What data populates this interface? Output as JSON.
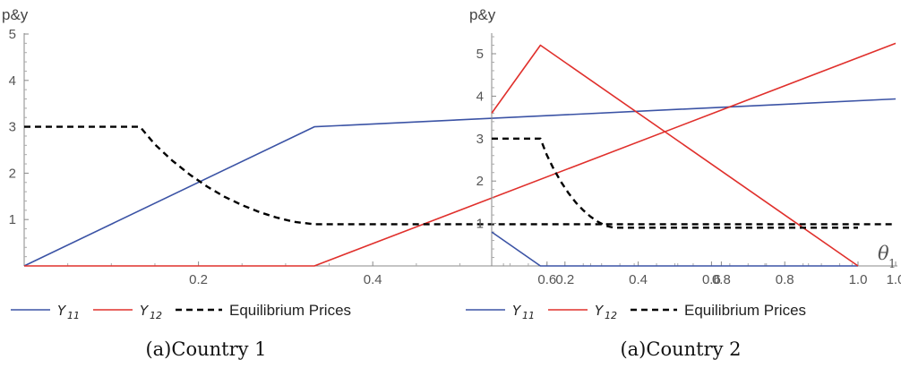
{
  "chart_data": [
    {
      "type": "line",
      "ylabel": "p&y",
      "xlabel": {
        "symbol": "θ",
        "sub": "1"
      },
      "caption": "(a)Country 1",
      "xlim": [
        0,
        1.0
      ],
      "ylim": [
        0,
        5
      ],
      "xticks": [
        0.2,
        0.4,
        0.6,
        0.8,
        1.0
      ],
      "xtick_labels": [
        "0.2",
        "0.4",
        "0.6",
        "0.8",
        "1.0"
      ],
      "yticks": [
        1,
        2,
        3,
        4,
        5
      ],
      "ytick_labels": [
        "1",
        "2",
        "3",
        "4",
        "5"
      ],
      "legend": [
        {
          "symbol": "Y",
          "sub": "11",
          "color": "#3b53a5",
          "dash": false
        },
        {
          "symbol": "Y",
          "sub": "12",
          "color": "#e0302c",
          "dash": false
        },
        {
          "label": "Equilibrium Prices",
          "color": "#000000",
          "dash": true
        }
      ],
      "series": [
        {
          "color": "#3b53a5",
          "dash": false,
          "x": [
            0,
            0.333,
            1.0
          ],
          "y": [
            0,
            3.0,
            3.6
          ]
        },
        {
          "color": "#e0302c",
          "dash": false,
          "x": [
            0,
            0.333,
            1.0
          ],
          "y": [
            0,
            0,
            4.8
          ]
        },
        {
          "color": "#000000",
          "dash": true,
          "x": [
            0,
            0.133,
            0.15,
            0.17,
            0.19,
            0.21,
            0.23,
            0.25,
            0.27,
            0.29,
            0.31,
            0.333,
            1.0
          ],
          "y": [
            3.0,
            3.0,
            2.62,
            2.27,
            1.97,
            1.71,
            1.49,
            1.31,
            1.16,
            1.04,
            0.95,
            0.9,
            0.9
          ]
        }
      ]
    },
    {
      "type": "line",
      "ylabel": "p&y",
      "xlabel": {
        "symbol": "θ",
        "sub": "1"
      },
      "caption": "(a)Country 2",
      "xlim": [
        0,
        1.0
      ],
      "ylim": [
        0,
        5.5
      ],
      "xticks": [
        0.2,
        0.4,
        0.6,
        0.8,
        1.0
      ],
      "xtick_labels": [
        "0.2",
        "0.4",
        "0.6",
        "0.8",
        "1.0"
      ],
      "yticks": [
        1,
        2,
        3,
        4,
        5
      ],
      "ytick_labels": [
        "1",
        "2",
        "3",
        "4",
        "5"
      ],
      "legend": [
        {
          "symbol": "Y",
          "sub": "11",
          "color": "#3b53a5",
          "dash": false
        },
        {
          "symbol": "Y",
          "sub": "12",
          "color": "#e0302c",
          "dash": false
        },
        {
          "label": "Equilibrium Prices",
          "color": "#000000",
          "dash": true
        }
      ],
      "series": [
        {
          "color": "#3b53a5",
          "dash": false,
          "x": [
            0,
            0.133,
            1.0
          ],
          "y": [
            0.8,
            0,
            0
          ]
        },
        {
          "color": "#e0302c",
          "dash": false,
          "x": [
            0,
            0.133,
            1.0
          ],
          "y": [
            3.6,
            5.2,
            0
          ]
        },
        {
          "color": "#000000",
          "dash": true,
          "x": [
            0,
            0.133,
            0.15,
            0.17,
            0.19,
            0.21,
            0.23,
            0.25,
            0.27,
            0.29,
            0.31,
            0.333,
            1.0
          ],
          "y": [
            3.0,
            3.0,
            2.62,
            2.27,
            1.97,
            1.71,
            1.49,
            1.31,
            1.16,
            1.04,
            0.95,
            0.9,
            0.9
          ]
        }
      ]
    }
  ]
}
